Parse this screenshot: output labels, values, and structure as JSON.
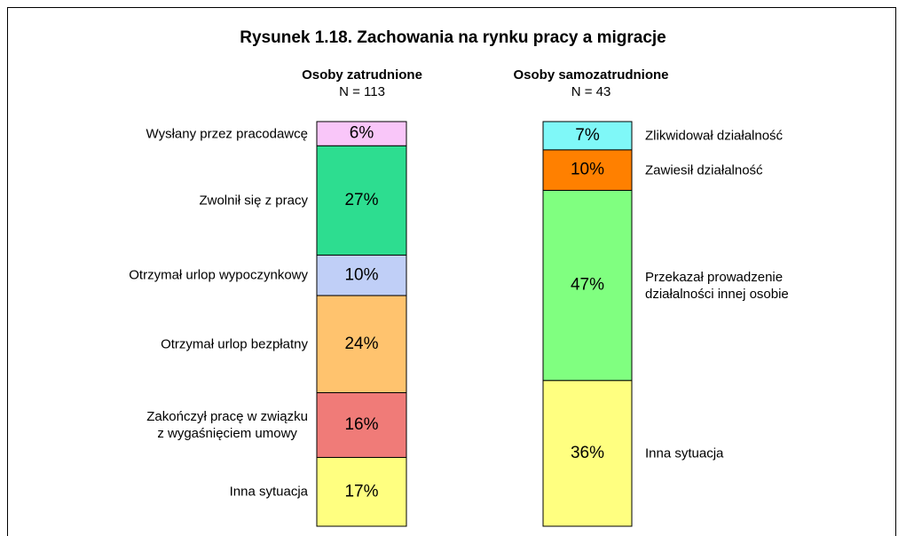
{
  "title": "Rysunek 1.18. Zachowania na rynku pracy a migracje",
  "chart_data": [
    {
      "type": "stacked",
      "title": "Osoby zatrudnione",
      "subtitle": "N = 113",
      "categories": [
        "Wysłany przez pracodawcę",
        "Zwolnił się z pracy",
        "Otrzymał urlop wypoczynkowy",
        "Otrzymał urlop bezpłatny",
        "Zakończył pracę w związku\nz wygaśnięciem umowy",
        "Inna sytuacja"
      ],
      "values": [
        6,
        27,
        10,
        24,
        16,
        17
      ],
      "value_labels": [
        "6%",
        "27%",
        "10%",
        "24%",
        "16%",
        "17%"
      ],
      "colors": [
        "#f9c6f9",
        "#2ddd90",
        "#c0cff7",
        "#ffc36e",
        "#f07b78",
        "#ffff80"
      ]
    },
    {
      "type": "stacked",
      "title": "Osoby samozatrudnione",
      "subtitle": "N = 43",
      "categories": [
        "Zlikwidował działalność",
        "Zawiesił działalność",
        "Przekazał prowadzenie\ndziałalności innej osobie",
        "Inna sytuacja"
      ],
      "values": [
        7,
        10,
        47,
        36
      ],
      "value_labels": [
        "7%",
        "10%",
        "47%",
        "36%"
      ],
      "colors": [
        "#7ff8f8",
        "#ff8000",
        "#80ff80",
        "#ffff80"
      ]
    }
  ]
}
